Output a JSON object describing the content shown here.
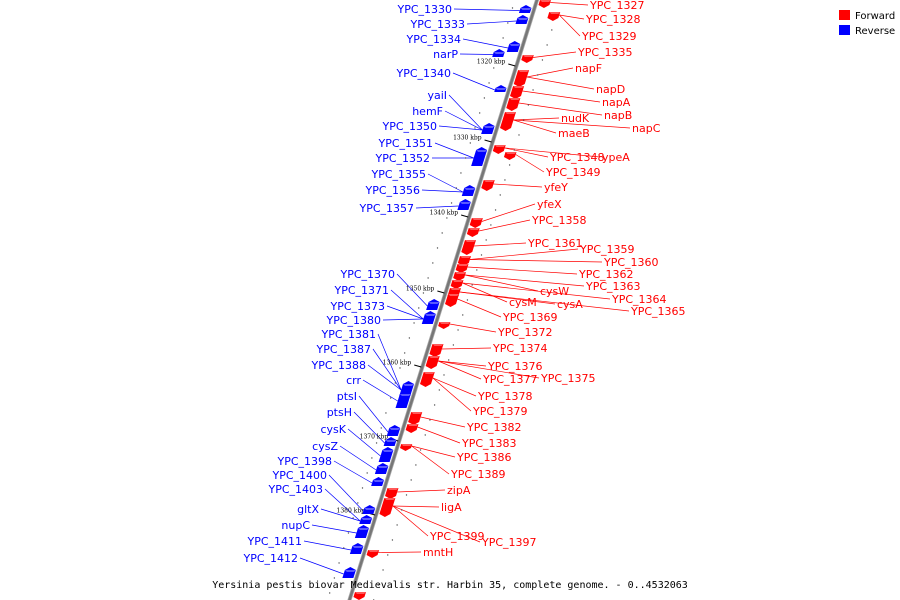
{
  "colors": {
    "forward": "#ff0000",
    "reverse": "#0000ff",
    "axis": "#777777"
  },
  "legend": {
    "forward_label": "Forward",
    "reverse_label": "Reverse"
  },
  "caption": "Yersinia pestis biovar Medievalis str. Harbin 35, complete genome. - 0..4532063",
  "axis": {
    "ticks": [
      "1320 kbp",
      "1330 kbp",
      "1340 kbp",
      "1350 kbp",
      "1360 kbp",
      "1370 kbp",
      "1380 kbp"
    ]
  },
  "reverse_genes": [
    "YPC_1330",
    "YPC_1333",
    "YPC_1334",
    "narP",
    "YPC_1340",
    "yaiI",
    "hemF",
    "YPC_1350",
    "YPC_1351",
    "YPC_1352",
    "YPC_1355",
    "YPC_1356",
    "YPC_1357",
    "YPC_1370",
    "YPC_1371",
    "YPC_1373",
    "YPC_1380",
    "YPC_1381",
    "YPC_1387",
    "YPC_1388",
    "crr",
    "ptsI",
    "ptsH",
    "cysK",
    "cysZ",
    "YPC_1398",
    "YPC_1400",
    "YPC_1403",
    "gltX",
    "nupC",
    "YPC_1411",
    "YPC_1412"
  ],
  "forward_genes": [
    "YPC_1327",
    "YPC_1328",
    "YPC_1329",
    "YPC_1335",
    "napF",
    "napD",
    "napA",
    "napB",
    "nudK",
    "napC",
    "maeB",
    "YPC_1348",
    "ypeA",
    "YPC_1349",
    "yfeY",
    "yfeX",
    "YPC_1358",
    "YPC_1361",
    "YPC_1359",
    "YPC_1360",
    "YPC_1362",
    "YPC_1363",
    "cysW",
    "YPC_1364",
    "cysM",
    "cysA",
    "YPC_1365",
    "YPC_1369",
    "YPC_1372",
    "YPC_1374",
    "YPC_1376",
    "YPC_1375",
    "YPC_1377",
    "YPC_1378",
    "YPC_1379",
    "YPC_1382",
    "YPC_1383",
    "YPC_1386",
    "YPC_1389",
    "zipA",
    "ligA",
    "YPC_1399",
    "YPC_1397",
    "mntH"
  ]
}
